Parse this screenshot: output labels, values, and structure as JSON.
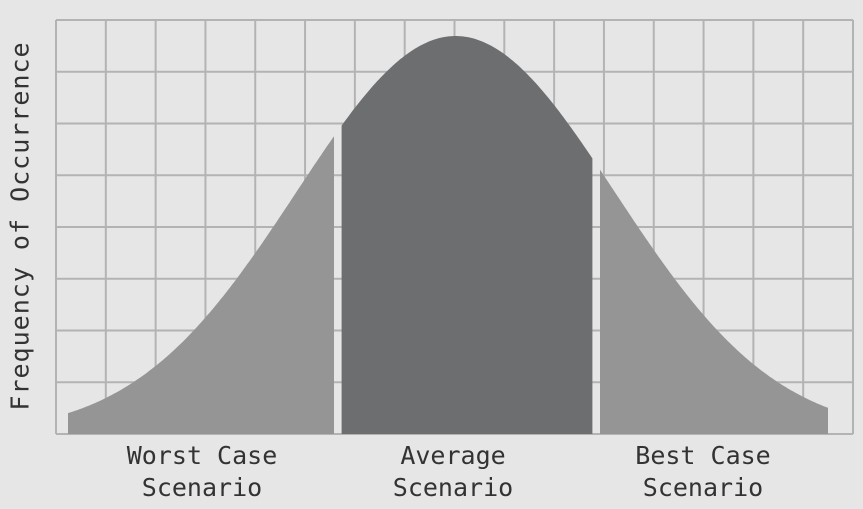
{
  "chart_data": {
    "type": "area",
    "title": "",
    "xlabel": "",
    "ylabel": "Frequency of Occurrence",
    "categories": [
      {
        "line1": "Worst Case",
        "line2": "Scenario"
      },
      {
        "line1": "Average",
        "line2": "Scenario"
      },
      {
        "line1": "Best Case",
        "line2": "Scenario"
      }
    ],
    "distribution": "normal",
    "peak_x": 0.51,
    "spread": 0.21,
    "segments": [
      {
        "from": 0.0,
        "to": 0.35,
        "color": "#959595"
      },
      {
        "from": 0.36,
        "to": 0.69,
        "color": "#6d6e70"
      },
      {
        "from": 0.7,
        "to": 1.0,
        "color": "#959595"
      }
    ],
    "grid": true,
    "grid_color": "#b3b3b3",
    "background": "#e6e6e6"
  }
}
